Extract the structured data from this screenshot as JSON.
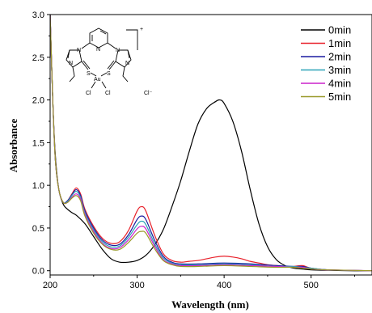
{
  "chart_data": {
    "type": "line",
    "xlabel": "Wavelength (nm)",
    "ylabel": "Absorbance",
    "xlim": [
      200,
      570
    ],
    "ylim": [
      -0.05,
      3.0
    ],
    "xticks": [
      200,
      300,
      400,
      500
    ],
    "yticks": [
      0.0,
      0.5,
      1.0,
      1.5,
      2.0,
      2.5,
      3.0
    ],
    "ytick_labels": [
      "0.0",
      "0.5",
      "1.0",
      "1.5",
      "2.0",
      "2.5",
      "3.0"
    ],
    "grid": false,
    "legend_position": "top-right",
    "series": [
      {
        "name": "0min",
        "color": "#000000",
        "x": [
          200,
          203,
          206,
          210,
          215,
          220,
          225,
          230,
          240,
          250,
          260,
          270,
          280,
          290,
          300,
          310,
          320,
          330,
          340,
          350,
          360,
          370,
          380,
          390,
          395,
          400,
          410,
          420,
          430,
          440,
          450,
          460,
          470,
          480,
          490,
          500,
          520,
          550,
          570
        ],
        "y": [
          3.0,
          2.0,
          1.35,
          0.95,
          0.78,
          0.72,
          0.68,
          0.65,
          0.55,
          0.4,
          0.25,
          0.14,
          0.1,
          0.1,
          0.12,
          0.18,
          0.3,
          0.48,
          0.75,
          1.05,
          1.4,
          1.72,
          1.9,
          1.98,
          2.0,
          1.96,
          1.75,
          1.4,
          0.95,
          0.55,
          0.28,
          0.13,
          0.06,
          0.03,
          0.02,
          0.01,
          0.005,
          0.0,
          0.0
        ]
      },
      {
        "name": "1min",
        "color": "#e8202a",
        "x": [
          200,
          203,
          206,
          210,
          215,
          220,
          225,
          230,
          235,
          240,
          250,
          260,
          270,
          280,
          290,
          300,
          305,
          310,
          320,
          330,
          340,
          350,
          360,
          370,
          380,
          390,
          400,
          410,
          420,
          430,
          440,
          450,
          460,
          470,
          480,
          490,
          500,
          520,
          570
        ],
        "y": [
          3.0,
          2.0,
          1.3,
          0.95,
          0.8,
          0.82,
          0.9,
          0.97,
          0.9,
          0.72,
          0.52,
          0.38,
          0.32,
          0.34,
          0.47,
          0.7,
          0.75,
          0.7,
          0.42,
          0.2,
          0.12,
          0.1,
          0.11,
          0.12,
          0.14,
          0.16,
          0.17,
          0.16,
          0.14,
          0.11,
          0.09,
          0.07,
          0.06,
          0.05,
          0.05,
          0.06,
          0.03,
          0.01,
          0.0
        ]
      },
      {
        "name": "2min",
        "color": "#1c1ca0",
        "x": [
          200,
          203,
          206,
          210,
          215,
          220,
          225,
          230,
          235,
          240,
          250,
          260,
          270,
          280,
          290,
          300,
          305,
          310,
          320,
          330,
          340,
          350,
          370,
          400,
          430,
          460,
          480,
          490,
          500,
          520,
          570
        ],
        "y": [
          3.0,
          2.0,
          1.3,
          0.95,
          0.8,
          0.82,
          0.89,
          0.95,
          0.88,
          0.7,
          0.5,
          0.36,
          0.3,
          0.31,
          0.42,
          0.6,
          0.64,
          0.6,
          0.36,
          0.17,
          0.1,
          0.08,
          0.08,
          0.09,
          0.08,
          0.06,
          0.05,
          0.05,
          0.03,
          0.01,
          0.0
        ]
      },
      {
        "name": "3min",
        "color": "#2aa3b8",
        "x": [
          200,
          203,
          206,
          210,
          215,
          220,
          225,
          230,
          235,
          240,
          250,
          260,
          270,
          280,
          290,
          300,
          305,
          310,
          320,
          330,
          340,
          350,
          370,
          400,
          430,
          460,
          480,
          490,
          500,
          520,
          570
        ],
        "y": [
          3.0,
          2.0,
          1.3,
          0.95,
          0.8,
          0.81,
          0.88,
          0.93,
          0.86,
          0.68,
          0.48,
          0.34,
          0.28,
          0.29,
          0.39,
          0.54,
          0.58,
          0.54,
          0.32,
          0.15,
          0.09,
          0.07,
          0.07,
          0.08,
          0.07,
          0.05,
          0.05,
          0.04,
          0.03,
          0.01,
          0.0
        ]
      },
      {
        "name": "4min",
        "color": "#cc22cc",
        "x": [
          200,
          203,
          206,
          210,
          215,
          220,
          225,
          230,
          235,
          240,
          250,
          260,
          270,
          280,
          290,
          300,
          305,
          310,
          320,
          330,
          340,
          350,
          370,
          400,
          430,
          460,
          480,
          490,
          500,
          520,
          570
        ],
        "y": [
          3.0,
          2.0,
          1.3,
          0.95,
          0.8,
          0.8,
          0.86,
          0.9,
          0.84,
          0.66,
          0.46,
          0.32,
          0.26,
          0.27,
          0.36,
          0.49,
          0.52,
          0.49,
          0.29,
          0.13,
          0.08,
          0.06,
          0.06,
          0.07,
          0.06,
          0.05,
          0.04,
          0.04,
          0.02,
          0.01,
          0.0
        ]
      },
      {
        "name": "5min",
        "color": "#9a9a2a",
        "x": [
          200,
          203,
          206,
          210,
          215,
          220,
          225,
          230,
          235,
          240,
          250,
          260,
          270,
          280,
          290,
          300,
          305,
          310,
          320,
          330,
          340,
          350,
          370,
          400,
          430,
          460,
          480,
          490,
          500,
          520,
          570
        ],
        "y": [
          3.0,
          2.0,
          1.3,
          0.95,
          0.8,
          0.8,
          0.85,
          0.88,
          0.82,
          0.64,
          0.44,
          0.31,
          0.25,
          0.25,
          0.33,
          0.44,
          0.46,
          0.44,
          0.26,
          0.12,
          0.07,
          0.05,
          0.05,
          0.06,
          0.05,
          0.04,
          0.04,
          0.03,
          0.02,
          0.01,
          0.0
        ]
      }
    ]
  },
  "inset": {
    "type": "chemical-structure",
    "charge": "+",
    "atom_labels": {
      "n1": "N",
      "n2": "N",
      "n3": "N",
      "n4": "N",
      "n5": "N",
      "s1": "S",
      "s2": "S",
      "au": "Au",
      "cl1": "Cl",
      "cl2": "Cl",
      "counter_ion": "Cl⁻"
    }
  }
}
